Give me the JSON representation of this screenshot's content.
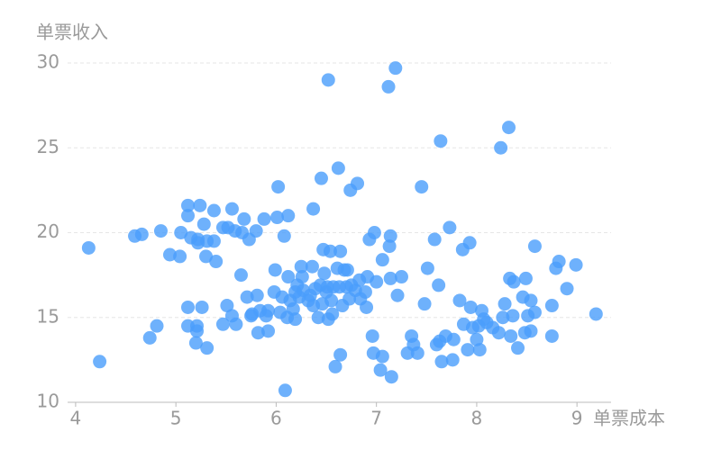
{
  "chart_data": {
    "type": "scatter",
    "x_label": "单票成本",
    "y_label": "单票收入",
    "xlim": [
      3.92,
      9.34
    ],
    "ylim": [
      10,
      30
    ],
    "xticks": [
      4,
      5,
      6,
      7,
      8,
      9
    ],
    "yticks": [
      10,
      15,
      20,
      25,
      30
    ],
    "grid": true,
    "color": "#4a9dfb",
    "series": [
      {
        "name": "单票",
        "color": "#4a9dfb",
        "x": [
          4.13,
          4.24,
          4.59,
          4.66,
          4.74,
          4.81,
          4.85,
          4.94,
          5.04,
          5.05,
          5.12,
          5.12,
          5.12,
          5.12,
          5.15,
          5.2,
          5.21,
          5.21,
          5.22,
          5.22,
          5.24,
          5.26,
          5.28,
          5.3,
          5.31,
          5.31,
          5.38,
          5.38,
          5.4,
          5.47,
          5.47,
          5.51,
          5.52,
          5.56,
          5.56,
          5.59,
          5.6,
          5.65,
          5.66,
          5.68,
          5.71,
          5.73,
          5.75,
          5.76,
          5.8,
          5.81,
          5.82,
          5.84,
          5.88,
          5.9,
          5.92,
          5.92,
          5.98,
          5.99,
          6.01,
          6.02,
          6.04,
          6.06,
          6.08,
          6.09,
          6.11,
          6.12,
          6.12,
          6.14,
          6.17,
          6.19,
          6.19,
          6.21,
          6.23,
          6.25,
          6.26,
          6.27,
          6.32,
          6.34,
          6.36,
          6.37,
          6.37,
          6.39,
          6.42,
          6.44,
          6.45,
          6.46,
          6.47,
          6.48,
          6.5,
          6.51,
          6.52,
          6.52,
          6.54,
          6.55,
          6.56,
          6.57,
          6.59,
          6.61,
          6.62,
          6.63,
          6.64,
          6.64,
          6.66,
          6.68,
          6.7,
          6.71,
          6.73,
          6.74,
          6.75,
          6.79,
          6.81,
          6.83,
          6.84,
          6.89,
          6.9,
          6.91,
          6.93,
          6.96,
          6.97,
          6.98,
          7.0,
          7.04,
          7.06,
          7.06,
          7.12,
          7.13,
          7.14,
          7.14,
          7.15,
          7.19,
          7.21,
          7.25,
          7.31,
          7.35,
          7.37,
          7.41,
          7.45,
          7.48,
          7.51,
          7.58,
          7.6,
          7.62,
          7.63,
          7.64,
          7.65,
          7.69,
          7.73,
          7.76,
          7.77,
          7.83,
          7.86,
          7.87,
          7.91,
          7.93,
          7.94,
          7.96,
          8.0,
          8.02,
          8.03,
          8.05,
          8.07,
          8.1,
          8.16,
          8.22,
          8.24,
          8.26,
          8.28,
          8.32,
          8.33,
          8.34,
          8.36,
          8.37,
          8.41,
          8.46,
          8.48,
          8.49,
          8.51,
          8.54,
          8.54,
          8.58,
          8.58,
          8.75,
          8.75,
          8.79,
          8.82,
          8.9,
          8.99,
          9.19
        ],
        "values": [
          19.1,
          12.4,
          19.8,
          19.9,
          13.8,
          14.5,
          20.1,
          18.7,
          18.6,
          20.0,
          21.6,
          21.0,
          15.6,
          14.5,
          19.7,
          13.5,
          14.5,
          14.2,
          19.4,
          19.6,
          21.6,
          15.6,
          20.5,
          18.6,
          19.5,
          13.2,
          21.3,
          19.5,
          18.3,
          20.3,
          14.6,
          15.7,
          20.3,
          15.1,
          21.4,
          20.1,
          14.6,
          17.5,
          20.0,
          20.8,
          16.2,
          19.6,
          15.1,
          15.2,
          20.1,
          16.3,
          14.1,
          15.4,
          20.8,
          15.1,
          15.4,
          14.2,
          16.5,
          17.8,
          20.9,
          22.7,
          15.3,
          16.2,
          19.8,
          10.7,
          15.0,
          21.0,
          17.4,
          16.0,
          15.5,
          14.9,
          16.5,
          16.9,
          16.2,
          18.0,
          17.4,
          16.6,
          16.0,
          16.3,
          18.0,
          21.4,
          15.7,
          16.7,
          15.0,
          16.9,
          23.2,
          15.8,
          19.0,
          17.6,
          16.5,
          16.8,
          29.0,
          14.9,
          18.9,
          16.0,
          15.2,
          16.8,
          12.1,
          17.9,
          23.8,
          16.8,
          18.9,
          12.8,
          15.7,
          17.8,
          16.8,
          17.8,
          16.1,
          22.5,
          16.9,
          16.6,
          22.9,
          17.2,
          16.1,
          16.5,
          15.6,
          17.4,
          19.6,
          13.9,
          12.9,
          20.0,
          17.1,
          11.9,
          12.7,
          18.4,
          28.6,
          19.2,
          19.8,
          17.3,
          11.5,
          29.7,
          16.3,
          17.4,
          12.9,
          13.9,
          13.4,
          12.9,
          22.7,
          15.8,
          17.9,
          19.6,
          13.4,
          16.9,
          13.6,
          25.4,
          12.4,
          13.9,
          20.3,
          12.5,
          13.7,
          16.0,
          19.0,
          14.6,
          13.1,
          19.4,
          15.6,
          14.4,
          13.7,
          14.5,
          13.1,
          15.4,
          14.9,
          14.7,
          14.4,
          14.1,
          25.0,
          15.0,
          15.8,
          26.2,
          17.3,
          13.9,
          15.1,
          17.1,
          13.2,
          16.2,
          14.1,
          17.3,
          15.1,
          16.0,
          14.2,
          19.2,
          15.3,
          13.9,
          15.7,
          17.9,
          18.3,
          16.7,
          18.1,
          15.2
        ]
      }
    ]
  }
}
